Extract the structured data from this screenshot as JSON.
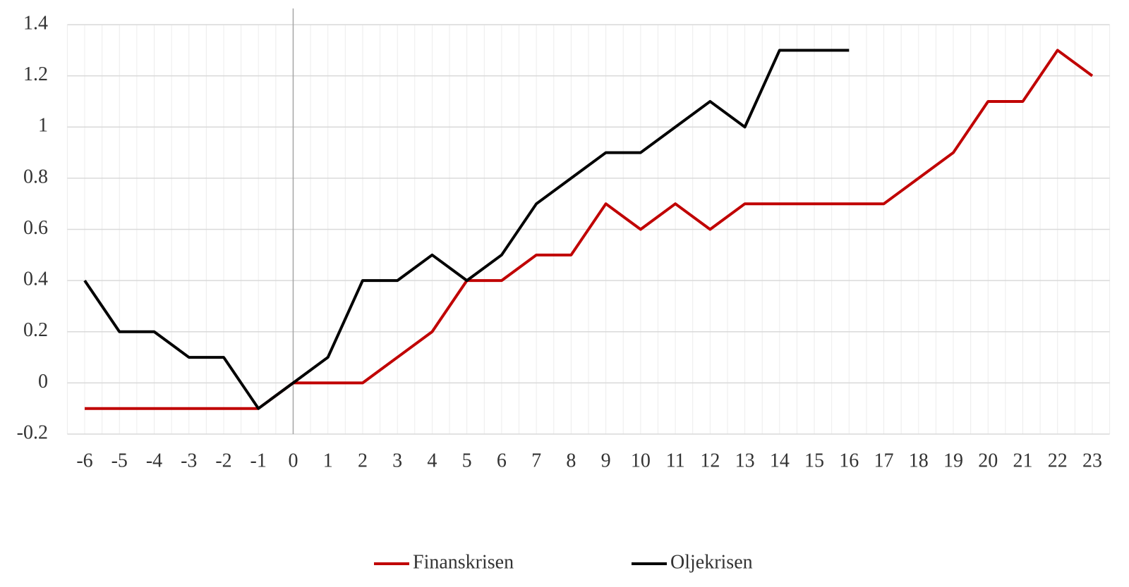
{
  "chart_data": {
    "type": "line",
    "categories": [
      "-6",
      "-5",
      "-4",
      "-3",
      "-2",
      "-1",
      "0",
      "1",
      "2",
      "3",
      "4",
      "5",
      "6",
      "7",
      "8",
      "9",
      "10",
      "11",
      "12",
      "13",
      "14",
      "15",
      "16",
      "17",
      "18",
      "19",
      "20",
      "21",
      "22",
      "23"
    ],
    "series": [
      {
        "name": "Finanskrisen",
        "color": "#c00000",
        "values": [
          -0.1,
          -0.1,
          -0.1,
          -0.1,
          -0.1,
          -0.1,
          0,
          0,
          0,
          0.1,
          0.2,
          0.4,
          0.4,
          0.5,
          0.5,
          0.7,
          0.6,
          0.7,
          0.6,
          0.7,
          0.7,
          0.7,
          0.7,
          0.7,
          0.8,
          0.9,
          1.1,
          1.1,
          1.3,
          1.2
        ]
      },
      {
        "name": "Oljekrisen",
        "color": "#000000",
        "values": [
          0.4,
          0.2,
          0.2,
          0.1,
          0.1,
          -0.1,
          0,
          0.1,
          0.4,
          0.4,
          0.5,
          0.4,
          0.5,
          0.7,
          0.8,
          0.9,
          0.9,
          1.0,
          1.1,
          1.0,
          1.3,
          1.3,
          1.3,
          null,
          null,
          null,
          null,
          null,
          null,
          null
        ]
      }
    ],
    "ylim": [
      -0.2,
      1.4
    ],
    "yticks": [
      -0.2,
      0,
      0.2,
      0.4,
      0.6,
      0.8,
      1,
      1.2,
      1.4
    ],
    "grid": true,
    "y_axis_crossing": "0",
    "legend": "bottom"
  }
}
